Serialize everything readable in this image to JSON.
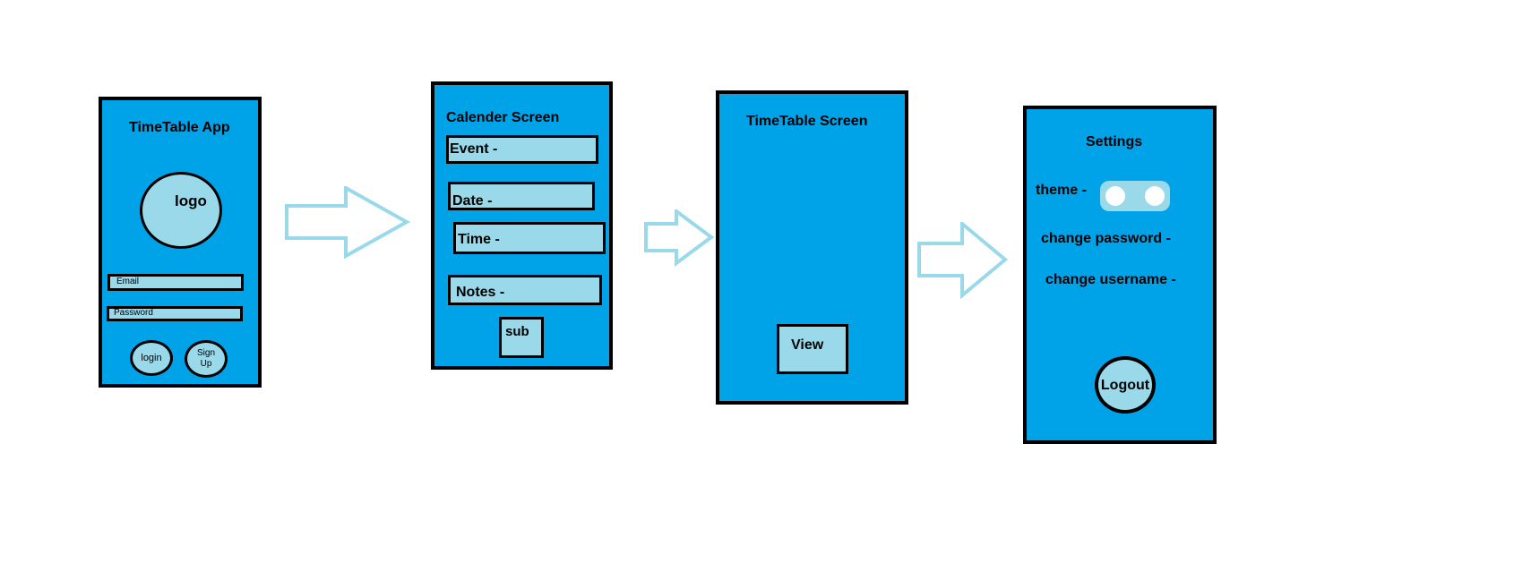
{
  "login_screen": {
    "title": "TimeTable App",
    "logo": "logo",
    "email_placeholder": "Email",
    "password_placeholder": "Password",
    "login_button": "login",
    "signup_button_line1": "Sign",
    "signup_button_line2": "Up"
  },
  "calendar_screen": {
    "title": "Calender Screen",
    "event_label": "Event -",
    "date_label": "Date -",
    "time_label": "Time -",
    "notes_label": "Notes -",
    "submit_button": "sub"
  },
  "timetable_screen": {
    "title": "TimeTable Screen",
    "view_button": "View"
  },
  "settings_screen": {
    "title": "Settings",
    "theme_label": "theme -",
    "change_password_label": "change password -",
    "change_username_label": "change username -",
    "logout_button": "Logout"
  },
  "colors": {
    "screen_fill": "#00a2e8",
    "element_fill": "#99d9ea",
    "arrow_stroke": "#99d9ea",
    "outline": "#000000"
  }
}
